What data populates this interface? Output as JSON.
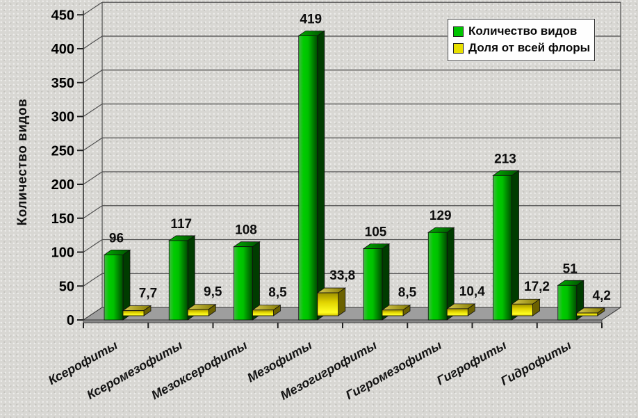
{
  "chart_data": {
    "type": "bar",
    "style": "3d-column",
    "title": "",
    "categories": [
      "Ксерофиты",
      "Ксеромезофиты",
      "Мезоксерофиты",
      "Мезофиты",
      "Мезогигрофиты",
      "Гигромезофиты",
      "Гигрофиты",
      "Гидрофиты"
    ],
    "series": [
      {
        "name": "Количество видов",
        "color": "#00c400",
        "values": [
          96,
          117,
          108,
          419,
          105,
          129,
          213,
          51
        ],
        "labels": [
          "96",
          "117",
          "108",
          "419",
          "105",
          "129",
          "213",
          "51"
        ]
      },
      {
        "name": "Доля от всей флоры",
        "color": "#e8e000",
        "values": [
          7.7,
          9.5,
          8.5,
          33.8,
          8.5,
          10.4,
          17.2,
          4.2
        ],
        "labels": [
          "7,7",
          "9,5",
          "8,5",
          "33,8",
          "8,5",
          "10,4",
          "17,2",
          "4,2"
        ]
      }
    ],
    "xlabel": "",
    "ylabel": "Количество видов",
    "ylim": [
      0,
      450
    ],
    "ytick_step": 50,
    "yticks": [
      "0",
      "50",
      "100",
      "150",
      "200",
      "250",
      "300",
      "350",
      "400",
      "450"
    ],
    "grid": true,
    "legend_position": "top-right",
    "background_color": "#d8d7d3",
    "floor_color": "#9e9e9e"
  }
}
